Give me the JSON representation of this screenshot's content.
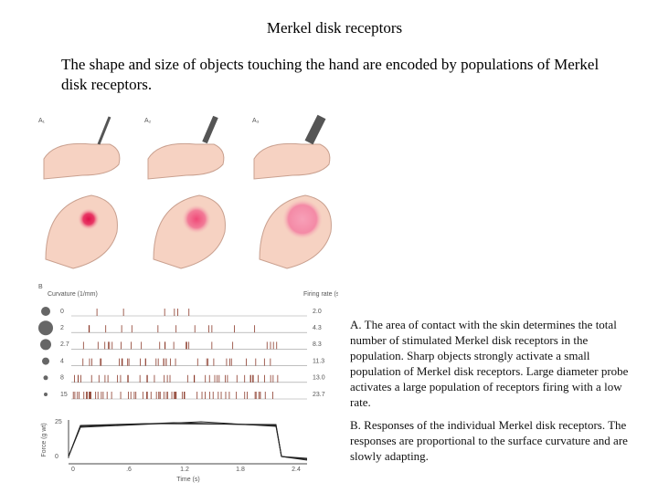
{
  "title": "Merkel disk receptors",
  "intro": "The shape and size of objects touching the hand are encoded by populations of Merkel disk receptors.",
  "figure": {
    "panel_labels": [
      "A₁",
      "A₂",
      "A₃",
      "B"
    ],
    "curvature_label": "Curvature (1/mm)",
    "rate_label": "Firing rate (spikes/s)",
    "curvatures": [
      "0",
      "2",
      "2.7",
      "4",
      "8",
      "15"
    ],
    "rates": [
      "2.0",
      "4.3",
      "8.3",
      "11.3",
      "13.0",
      "23.7"
    ],
    "force_label": "Force (g wt)",
    "force_ticks": [
      "25",
      "0"
    ],
    "time_ticks": [
      "0",
      ".6",
      "1.2",
      "1.8",
      "2.4"
    ],
    "time_label": "Time (s)"
  },
  "captions": [
    "A. The area of contact with the skin determines the total number of stimulated Merkel disk receptors in the population. Sharp objects strongly activate a small population of Merkel disk receptors. Large diameter probe activates a large population of receptors firing with a low rate.",
    "B. Responses of the individual Merkel disk receptors. The responses are proportional to the surface curvature and are slowly adapting."
  ]
}
